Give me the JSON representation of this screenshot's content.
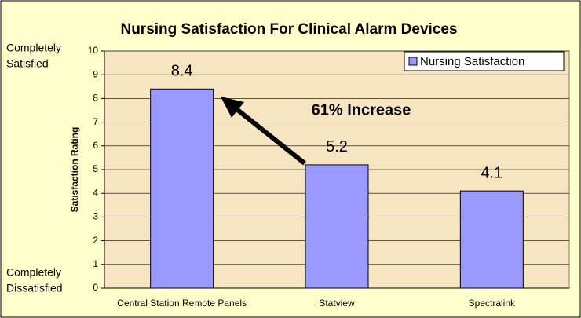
{
  "chart_data": {
    "type": "bar",
    "title": "Nursing Satisfaction For Clinical Alarm Devices",
    "y_axis_label": "Satisfaction Rating",
    "y_end_labels": {
      "top": [
        "Completely",
        "Satisfied"
      ],
      "bottom": [
        "Completely",
        "Dissatisfied"
      ]
    },
    "annotation": "61% Increase",
    "categories": [
      "Central Station Remote Panels",
      "Statview",
      "Spectralink"
    ],
    "series": [
      {
        "name": "Nursing Satisfaction",
        "color": "#9999ff",
        "values": [
          8.4,
          5.2,
          4.1
        ]
      }
    ],
    "ylim": [
      0,
      10
    ],
    "yticks": [
      0,
      1,
      2,
      3,
      4,
      5,
      6,
      7,
      8,
      9,
      10
    ],
    "grid": true,
    "legend": "top-right",
    "plot_background": "#f7e4c1"
  }
}
